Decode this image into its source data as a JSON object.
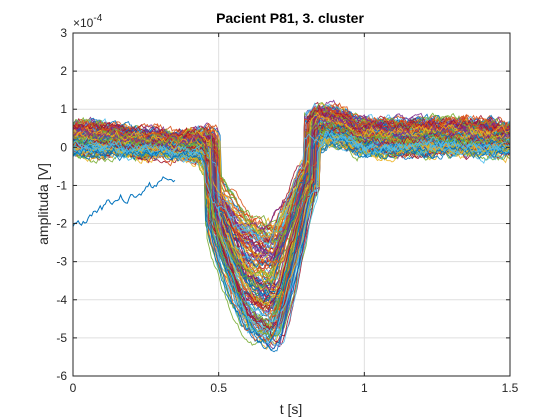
{
  "chart_data": {
    "type": "line",
    "title": "Pacient P81, 3. cluster",
    "xlabel": "t [s]",
    "ylabel": "amplituda [V]",
    "exponent_label": "×10",
    "exponent_power": "-4",
    "xlim": [
      0,
      1.5
    ],
    "ylim": [
      -6,
      3
    ],
    "xticks": [
      0,
      0.5,
      1,
      1.5
    ],
    "xtick_labels": [
      "0",
      "0.5",
      "1",
      "1.5"
    ],
    "yticks": [
      3,
      2,
      1,
      0,
      -1,
      -2,
      -3,
      -4,
      -5,
      -6
    ],
    "ytick_labels": [
      "3",
      "2",
      "1",
      "0",
      "-1",
      "-2",
      "-3",
      "-4",
      "-5",
      "-6"
    ],
    "grid": true,
    "series_count_estimate": 160,
    "colors": [
      "#0072BD",
      "#D95319",
      "#EDB120",
      "#7E2F8E",
      "#77AC30",
      "#4DBEEE",
      "#A2142F"
    ],
    "envelope": {
      "t": [
        0.0,
        0.05,
        0.1,
        0.15,
        0.2,
        0.25,
        0.3,
        0.35,
        0.4,
        0.45,
        0.5,
        0.53,
        0.56,
        0.6,
        0.63,
        0.67,
        0.7,
        0.75,
        0.8,
        0.85,
        0.9,
        0.95,
        1.0,
        1.1,
        1.2,
        1.3,
        1.4,
        1.5
      ],
      "upper": [
        1.3,
        1.4,
        1.2,
        1.1,
        1.0,
        1.0,
        0.9,
        0.8,
        1.0,
        1.3,
        1.9,
        2.1,
        1.9,
        1.2,
        1.5,
        1.6,
        1.8,
        2.0,
        1.8,
        1.9,
        1.8,
        1.6,
        1.4,
        1.4,
        1.3,
        1.5,
        1.4,
        1.2
      ],
      "lower": [
        -0.9,
        -0.9,
        -0.8,
        -0.7,
        -0.8,
        -0.8,
        -0.7,
        -0.7,
        -0.9,
        -1.2,
        -2.8,
        -3.5,
        -4.2,
        -4.8,
        -5.0,
        -5.2,
        -5.1,
        -3.5,
        -1.5,
        -0.8,
        -0.7,
        -0.8,
        -0.9,
        -0.9,
        -0.8,
        -0.9,
        -0.9,
        -0.8
      ]
    },
    "highlighted_series": {
      "name": "",
      "color": "#0072BD",
      "t": [
        0.0,
        0.05,
        0.1,
        0.15,
        0.2,
        0.25,
        0.3,
        0.35
      ],
      "values": [
        -2.0,
        -1.8,
        -1.6,
        -1.4,
        -1.3,
        -1.1,
        -1.0,
        -0.9
      ]
    }
  }
}
